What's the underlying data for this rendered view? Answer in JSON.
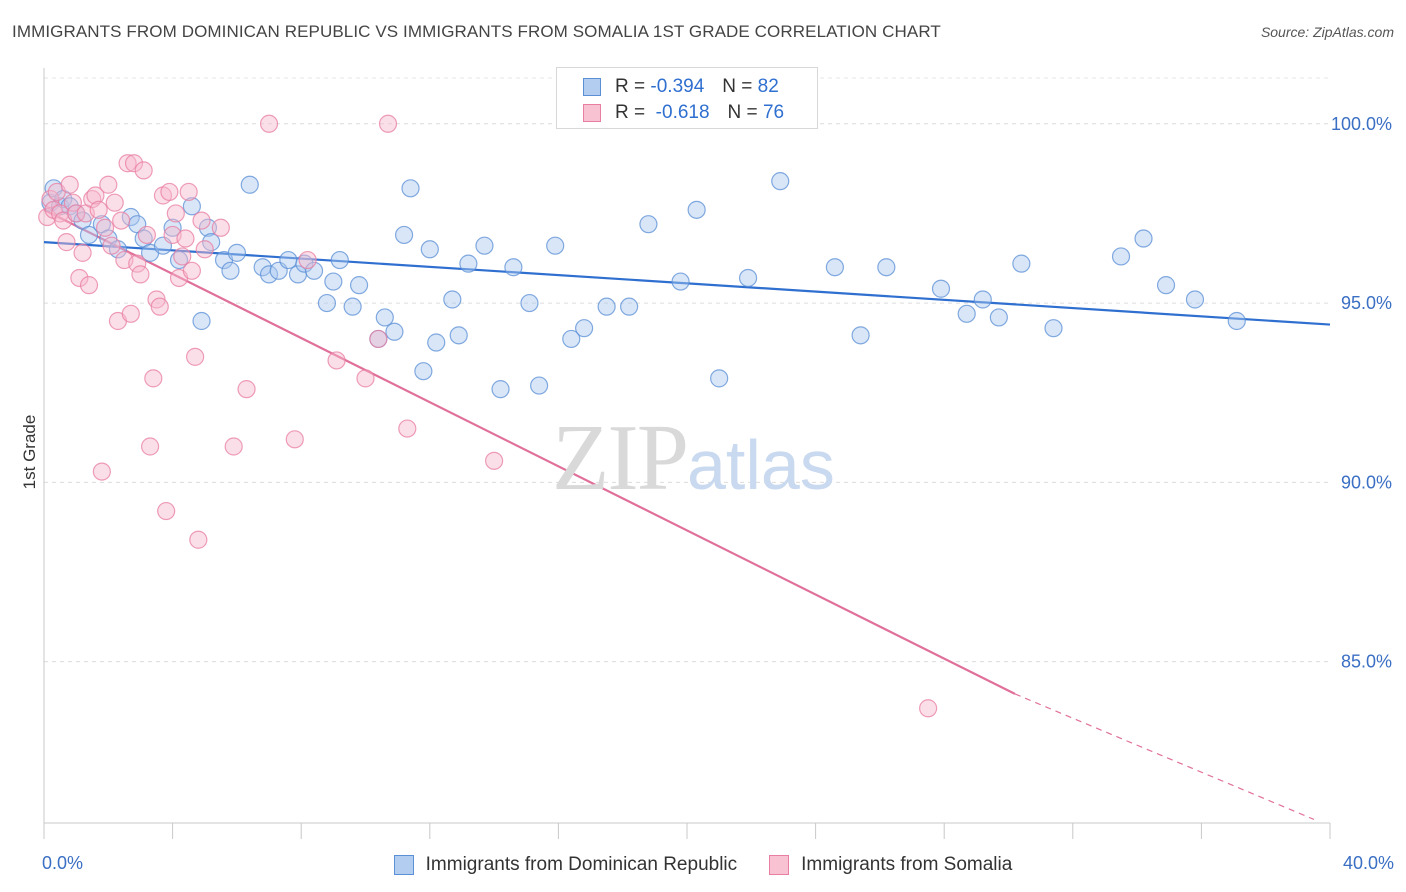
{
  "header": {
    "title": "IMMIGRANTS FROM DOMINICAN REPUBLIC VS IMMIGRANTS FROM SOMALIA 1ST GRADE CORRELATION CHART",
    "source": "Source: ZipAtlas.com"
  },
  "watermark": {
    "zip": "ZIP",
    "atlas": "atlas"
  },
  "legend_top": {
    "rows": [
      {
        "r_label": "R =",
        "r_value": "-0.394",
        "n_label": "N =",
        "n_value": "82"
      },
      {
        "r_label": "R =",
        "r_value": "-0.618",
        "n_label": "N =",
        "n_value": "76"
      }
    ]
  },
  "chart_data": {
    "type": "scatter",
    "title": "IMMIGRANTS FROM DOMINICAN REPUBLIC VS IMMIGRANTS FROM SOMALIA 1ST GRADE CORRELATION CHART",
    "xlabel": "",
    "ylabel": "1st Grade",
    "xlim": [
      0,
      40
    ],
    "ylim": [
      80.5,
      101.5
    ],
    "x_tick_labels": [
      "0.0%",
      "40.0%"
    ],
    "y_ticks": [
      85,
      90,
      95,
      100
    ],
    "y_tick_labels": [
      "85.0%",
      "90.0%",
      "95.0%",
      "100.0%"
    ],
    "grid": "horizontal dashed",
    "legend_position": "bottom",
    "series": [
      {
        "name": "Immigrants from Dominican Republic",
        "color": "#5b8fd6",
        "fill": "#a9c7ef",
        "r": -0.394,
        "n": 82,
        "trend": {
          "x": [
            0,
            40
          ],
          "y": [
            96.7,
            94.4
          ]
        },
        "points": [
          [
            0.2,
            97.8
          ],
          [
            0.3,
            98.2
          ],
          [
            0.5,
            97.7
          ],
          [
            0.6,
            97.9
          ],
          [
            0.8,
            97.7
          ],
          [
            1.0,
            97.5
          ],
          [
            1.2,
            97.3
          ],
          [
            1.4,
            96.9
          ],
          [
            1.8,
            97.2
          ],
          [
            2.0,
            96.8
          ],
          [
            2.3,
            96.5
          ],
          [
            2.7,
            97.4
          ],
          [
            2.9,
            97.2
          ],
          [
            3.1,
            96.8
          ],
          [
            3.3,
            96.4
          ],
          [
            3.7,
            96.6
          ],
          [
            4.0,
            97.1
          ],
          [
            4.2,
            96.2
          ],
          [
            4.6,
            97.7
          ],
          [
            4.9,
            94.5
          ],
          [
            5.1,
            97.1
          ],
          [
            5.2,
            96.7
          ],
          [
            5.6,
            96.2
          ],
          [
            5.8,
            95.9
          ],
          [
            6.0,
            96.4
          ],
          [
            6.4,
            98.3
          ],
          [
            6.8,
            96.0
          ],
          [
            7.0,
            95.8
          ],
          [
            7.3,
            95.9
          ],
          [
            7.6,
            96.2
          ],
          [
            7.9,
            95.8
          ],
          [
            8.1,
            96.1
          ],
          [
            8.4,
            95.9
          ],
          [
            8.8,
            95.0
          ],
          [
            9.0,
            95.6
          ],
          [
            9.2,
            96.2
          ],
          [
            9.6,
            94.9
          ],
          [
            9.8,
            95.5
          ],
          [
            10.4,
            94.0
          ],
          [
            10.6,
            94.6
          ],
          [
            10.9,
            94.2
          ],
          [
            11.2,
            96.9
          ],
          [
            11.4,
            98.2
          ],
          [
            11.8,
            93.1
          ],
          [
            12.0,
            96.5
          ],
          [
            12.2,
            93.9
          ],
          [
            12.7,
            95.1
          ],
          [
            12.9,
            94.1
          ],
          [
            13.2,
            96.1
          ],
          [
            13.7,
            96.6
          ],
          [
            14.2,
            92.6
          ],
          [
            14.6,
            96.0
          ],
          [
            15.1,
            95.0
          ],
          [
            15.4,
            92.7
          ],
          [
            15.9,
            96.6
          ],
          [
            16.4,
            94.0
          ],
          [
            16.8,
            94.3
          ],
          [
            17.5,
            94.9
          ],
          [
            18.2,
            94.9
          ],
          [
            18.8,
            97.2
          ],
          [
            19.8,
            95.6
          ],
          [
            20.3,
            97.6
          ],
          [
            21.0,
            92.9
          ],
          [
            21.9,
            95.7
          ],
          [
            22.9,
            98.4
          ],
          [
            24.6,
            96.0
          ],
          [
            25.4,
            94.1
          ],
          [
            26.2,
            96.0
          ],
          [
            27.9,
            95.4
          ],
          [
            28.7,
            94.7
          ],
          [
            29.2,
            95.1
          ],
          [
            29.7,
            94.6
          ],
          [
            30.4,
            96.1
          ],
          [
            31.4,
            94.3
          ],
          [
            33.5,
            96.3
          ],
          [
            34.2,
            96.8
          ],
          [
            34.9,
            95.5
          ],
          [
            35.8,
            95.1
          ],
          [
            37.1,
            94.5
          ]
        ]
      },
      {
        "name": "Immigrants from Somalia",
        "color": "#e87ea1",
        "fill": "#f6b8cc",
        "r": -0.618,
        "n": 76,
        "trend": {
          "x": [
            0,
            30.2
          ],
          "y": [
            97.6,
            84.1
          ]
        },
        "trend_dashed": {
          "x": [
            30.2,
            39.5
          ],
          "y": [
            84.1,
            80.6
          ]
        },
        "points": [
          [
            0.1,
            97.4
          ],
          [
            0.2,
            97.9
          ],
          [
            0.3,
            97.6
          ],
          [
            0.4,
            98.1
          ],
          [
            0.5,
            97.5
          ],
          [
            0.6,
            97.3
          ],
          [
            0.7,
            96.7
          ],
          [
            0.8,
            98.3
          ],
          [
            0.9,
            97.8
          ],
          [
            1.0,
            97.5
          ],
          [
            1.1,
            95.7
          ],
          [
            1.2,
            96.4
          ],
          [
            1.3,
            97.5
          ],
          [
            1.4,
            95.5
          ],
          [
            1.5,
            97.9
          ],
          [
            1.6,
            98.0
          ],
          [
            1.7,
            97.6
          ],
          [
            1.8,
            90.3
          ],
          [
            1.9,
            97.1
          ],
          [
            2.0,
            98.3
          ],
          [
            2.1,
            96.6
          ],
          [
            2.2,
            97.8
          ],
          [
            2.3,
            94.5
          ],
          [
            2.4,
            97.3
          ],
          [
            2.5,
            96.2
          ],
          [
            2.6,
            98.9
          ],
          [
            2.7,
            94.7
          ],
          [
            2.8,
            98.9
          ],
          [
            2.9,
            96.1
          ],
          [
            3.0,
            95.8
          ],
          [
            3.1,
            98.7
          ],
          [
            3.2,
            96.9
          ],
          [
            3.3,
            91.0
          ],
          [
            3.4,
            92.9
          ],
          [
            3.5,
            95.1
          ],
          [
            3.6,
            94.9
          ],
          [
            3.7,
            98.0
          ],
          [
            3.8,
            89.2
          ],
          [
            3.9,
            98.1
          ],
          [
            4.0,
            96.9
          ],
          [
            4.1,
            97.5
          ],
          [
            4.2,
            95.7
          ],
          [
            4.3,
            96.3
          ],
          [
            4.4,
            96.8
          ],
          [
            4.5,
            98.1
          ],
          [
            4.6,
            95.9
          ],
          [
            4.7,
            93.5
          ],
          [
            4.8,
            88.4
          ],
          [
            4.9,
            97.3
          ],
          [
            5.0,
            96.5
          ],
          [
            5.5,
            97.1
          ],
          [
            5.9,
            91.0
          ],
          [
            6.3,
            92.6
          ],
          [
            7.0,
            100.0
          ],
          [
            7.8,
            91.2
          ],
          [
            8.2,
            96.2
          ],
          [
            9.1,
            93.4
          ],
          [
            10.0,
            92.9
          ],
          [
            10.4,
            94.0
          ],
          [
            10.7,
            100.0
          ],
          [
            11.3,
            91.5
          ],
          [
            14.0,
            90.6
          ],
          [
            27.5,
            83.7
          ]
        ]
      }
    ]
  }
}
